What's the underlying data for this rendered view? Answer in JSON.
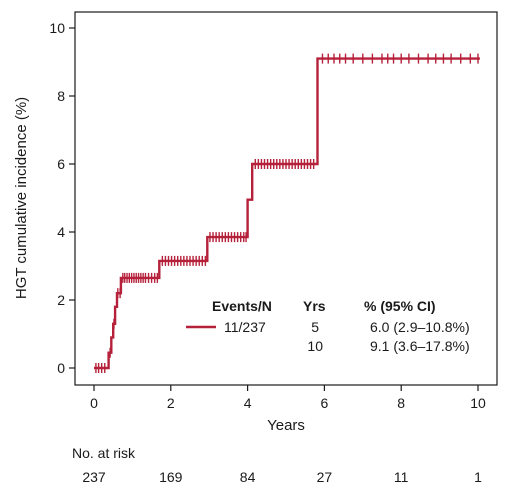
{
  "chart_data": {
    "type": "line",
    "subtype": "cumulative-incidence-step",
    "xlabel": "Years",
    "ylabel": "HGT cumulative incidence (%)",
    "xlim": [
      0,
      10
    ],
    "ylim": [
      0,
      10
    ],
    "xticks": [
      0,
      2,
      4,
      6,
      8,
      10
    ],
    "yticks": [
      0,
      2,
      4,
      6,
      8,
      10
    ],
    "grid": false,
    "series": [
      {
        "color": "#b5213a",
        "steps": [
          [
            0,
            0
          ],
          [
            0.38,
            0
          ],
          [
            0.38,
            0.45
          ],
          [
            0.45,
            0.45
          ],
          [
            0.45,
            0.9
          ],
          [
            0.5,
            0.9
          ],
          [
            0.5,
            1.3
          ],
          [
            0.55,
            1.3
          ],
          [
            0.55,
            1.8
          ],
          [
            0.6,
            1.8
          ],
          [
            0.6,
            2.2
          ],
          [
            0.7,
            2.2
          ],
          [
            0.7,
            2.65
          ],
          [
            1.7,
            2.65
          ],
          [
            1.7,
            3.15
          ],
          [
            2.95,
            3.15
          ],
          [
            2.95,
            3.85
          ],
          [
            4.0,
            3.85
          ],
          [
            4.0,
            4.95
          ],
          [
            4.12,
            4.95
          ],
          [
            4.12,
            6.0
          ],
          [
            5.82,
            6.0
          ],
          [
            5.82,
            9.1
          ],
          [
            10.05,
            9.1
          ]
        ],
        "censor_times": [
          0.05,
          0.12,
          0.2,
          0.28,
          0.42,
          0.52,
          0.62,
          0.68,
          0.75,
          0.8,
          0.86,
          0.92,
          0.98,
          1.04,
          1.1,
          1.16,
          1.22,
          1.28,
          1.34,
          1.42,
          1.5,
          1.58,
          1.65,
          1.78,
          1.86,
          1.94,
          2.02,
          2.1,
          2.18,
          2.26,
          2.34,
          2.42,
          2.5,
          2.58,
          2.66,
          2.74,
          2.82,
          2.9,
          3.02,
          3.1,
          3.18,
          3.26,
          3.34,
          3.42,
          3.5,
          3.58,
          3.66,
          3.74,
          3.82,
          3.9,
          3.96,
          4.2,
          4.28,
          4.36,
          4.44,
          4.52,
          4.6,
          4.68,
          4.76,
          4.84,
          4.92,
          5.0,
          5.08,
          5.16,
          5.24,
          5.32,
          5.4,
          5.48,
          5.56,
          5.64,
          5.72,
          5.95,
          6.1,
          6.25,
          6.4,
          6.55,
          6.75,
          7.0,
          7.25,
          7.5,
          7.65,
          7.8,
          8.0,
          8.2,
          8.45,
          8.7,
          8.9,
          9.1,
          9.3,
          9.55,
          9.8,
          10.0
        ]
      }
    ],
    "legend": {
      "headers": [
        "Events/N",
        "Yrs",
        "% (95% CI)"
      ],
      "rows": [
        {
          "events": "11/237",
          "yrs": "5",
          "ci": "6.0 (2.9–10.8%)"
        },
        {
          "events": "",
          "yrs": "10",
          "ci": "9.1 (3.6–17.8%)"
        }
      ]
    },
    "at_risk": {
      "title": "No. at risk",
      "times": [
        0,
        2,
        4,
        6,
        8,
        10
      ],
      "values": [
        "237",
        "169",
        "84",
        "27",
        "11",
        "1"
      ]
    }
  }
}
